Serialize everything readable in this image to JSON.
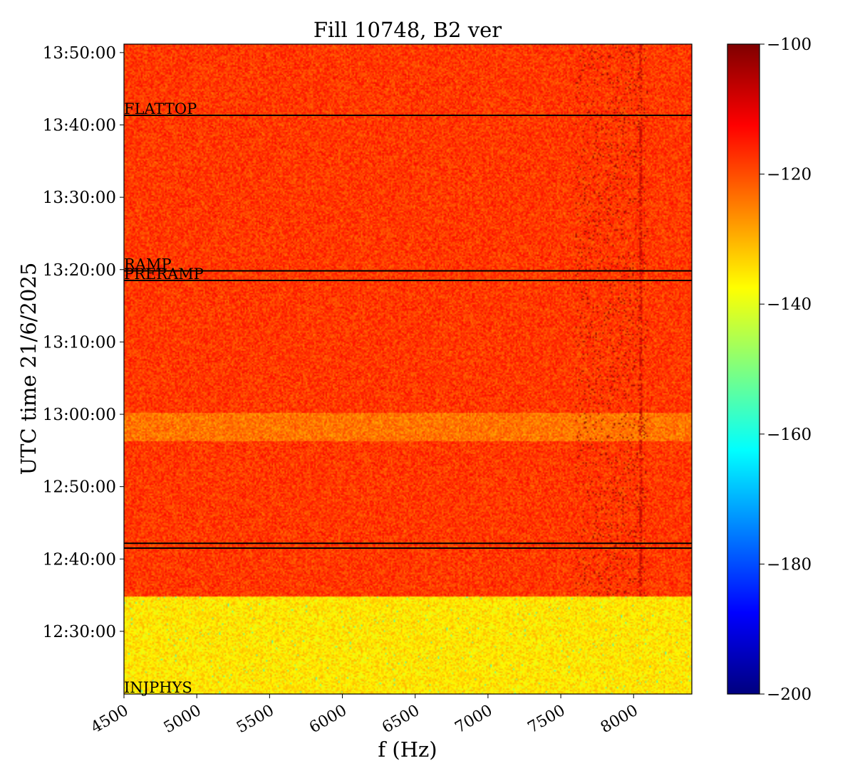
{
  "chart_data": {
    "type": "heatmap",
    "title": "Fill 10748, B2 ver",
    "xlabel": "f (Hz)",
    "ylabel": "UTC time 21/6/2025",
    "xlim": [
      4500,
      8400
    ],
    "ylim": [
      "12:21:20",
      "13:51:10"
    ],
    "x_ticks": [
      4500,
      5000,
      5500,
      6000,
      6500,
      7000,
      7500,
      8000
    ],
    "x_tick_labels": [
      "4500",
      "5000",
      "5500",
      "6000",
      "6500",
      "7000",
      "7500",
      "8000"
    ],
    "y_ticks": [
      "12:30:00",
      "12:40:00",
      "12:50:00",
      "13:00:00",
      "13:10:00",
      "13:20:00",
      "13:30:00",
      "13:40:00",
      "13:50:00"
    ],
    "y_tick_labels": [
      "12:30:00",
      "12:40:00",
      "12:50:00",
      "13:00:00",
      "13:10:00",
      "13:20:00",
      "13:30:00",
      "13:40:00",
      "13:50:00"
    ],
    "colorbar": {
      "min": -200,
      "max": -100,
      "ticks": [
        -100,
        -120,
        -140,
        -160,
        -180,
        -200
      ],
      "tick_labels": [
        "−100",
        "−120",
        "−140",
        "−160",
        "−180",
        "−200"
      ],
      "colormap": [
        "#00007f",
        "#0000ff",
        "#007fff",
        "#00ffff",
        "#7fff7f",
        "#ffff00",
        "#ff7f00",
        "#ff0000",
        "#7f0000"
      ]
    },
    "regions": [
      {
        "start": "12:21:20",
        "end": "12:34:50",
        "level": -135
      },
      {
        "start": "12:34:50",
        "end": "12:56:20",
        "level": -118
      },
      {
        "start": "12:56:20",
        "end": "13:00:10",
        "level": -124
      },
      {
        "start": "13:00:10",
        "end": "13:51:10",
        "level": -118
      }
    ],
    "events": [
      {
        "label": "INJPHYS",
        "time": "12:21:20",
        "show_line": false
      },
      {
        "label": "",
        "time": "12:41:30",
        "show_line": true
      },
      {
        "label": "",
        "time": "12:42:10",
        "show_line": true
      },
      {
        "label": "PRERAMP",
        "time": "13:18:30",
        "show_line": true
      },
      {
        "label": "RAMP",
        "time": "13:19:50",
        "show_line": true
      },
      {
        "label": "FLATTOP",
        "time": "13:41:20",
        "show_line": true
      }
    ]
  }
}
